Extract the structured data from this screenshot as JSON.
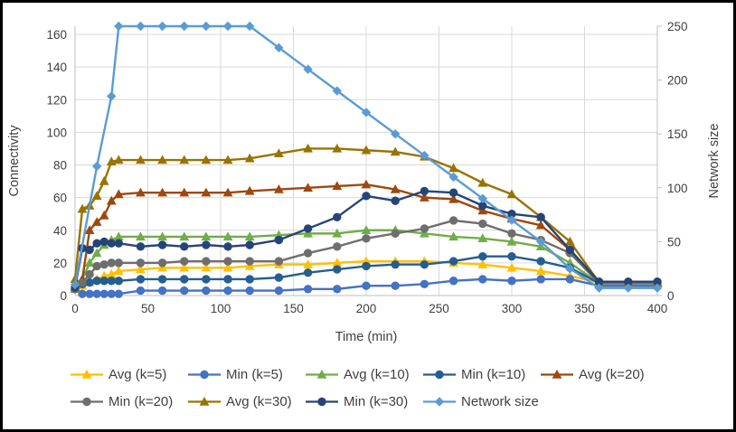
{
  "chart_data": {
    "type": "line",
    "title": "",
    "xlabel": "Time (min)",
    "ylabel_left": "Connectivity",
    "ylabel_right": "Network size",
    "x_range": [
      0,
      400
    ],
    "x_ticks": [
      0,
      50,
      100,
      150,
      200,
      250,
      300,
      350,
      400
    ],
    "y_left_ticks": [
      0,
      20,
      40,
      60,
      80,
      100,
      120,
      140,
      160
    ],
    "y_right_ticks": [
      0,
      50,
      100,
      150,
      200,
      250
    ],
    "grid": true,
    "legend_position": "bottom",
    "colors": {
      "grid": "#d9d9d9",
      "axis": "#bfbfbf",
      "text": "#3f3f3f"
    },
    "series": [
      {
        "name": "Avg (k=5)",
        "color": "#FFC000",
        "marker": "triangle",
        "axis": "left",
        "points": [
          [
            0,
            4
          ],
          [
            5,
            6
          ],
          [
            10,
            8
          ],
          [
            15,
            10
          ],
          [
            20,
            12
          ],
          [
            25,
            13
          ],
          [
            30,
            15
          ],
          [
            45,
            16
          ],
          [
            60,
            17
          ],
          [
            75,
            17
          ],
          [
            90,
            17
          ],
          [
            105,
            17
          ],
          [
            120,
            18
          ],
          [
            140,
            19
          ],
          [
            160,
            19
          ],
          [
            180,
            20
          ],
          [
            200,
            21
          ],
          [
            220,
            21
          ],
          [
            240,
            21
          ],
          [
            260,
            20
          ],
          [
            280,
            19
          ],
          [
            300,
            17
          ],
          [
            320,
            15
          ],
          [
            340,
            12
          ],
          [
            360,
            8
          ],
          [
            380,
            8
          ],
          [
            400,
            8
          ]
        ]
      },
      {
        "name": "Min (k=5)",
        "color": "#4472C4",
        "marker": "circle",
        "axis": "left",
        "points": [
          [
            0,
            4
          ],
          [
            5,
            1
          ],
          [
            10,
            1
          ],
          [
            15,
            1
          ],
          [
            20,
            1
          ],
          [
            25,
            1
          ],
          [
            30,
            1
          ],
          [
            45,
            3
          ],
          [
            60,
            3
          ],
          [
            75,
            3
          ],
          [
            90,
            3
          ],
          [
            105,
            3
          ],
          [
            120,
            3
          ],
          [
            140,
            3
          ],
          [
            160,
            4
          ],
          [
            180,
            4
          ],
          [
            200,
            6
          ],
          [
            220,
            6
          ],
          [
            240,
            7
          ],
          [
            260,
            9
          ],
          [
            280,
            10
          ],
          [
            300,
            9
          ],
          [
            320,
            10
          ],
          [
            340,
            10
          ],
          [
            360,
            6
          ],
          [
            380,
            6
          ],
          [
            400,
            6
          ]
        ]
      },
      {
        "name": "Avg (k=10)",
        "color": "#70AD47",
        "marker": "triangle",
        "axis": "left",
        "points": [
          [
            0,
            4
          ],
          [
            5,
            10
          ],
          [
            10,
            20
          ],
          [
            15,
            26
          ],
          [
            20,
            31
          ],
          [
            25,
            34
          ],
          [
            30,
            36
          ],
          [
            45,
            36
          ],
          [
            60,
            36
          ],
          [
            75,
            36
          ],
          [
            90,
            36
          ],
          [
            105,
            36
          ],
          [
            120,
            36
          ],
          [
            140,
            37
          ],
          [
            160,
            38
          ],
          [
            180,
            38
          ],
          [
            200,
            40
          ],
          [
            220,
            40
          ],
          [
            240,
            38
          ],
          [
            260,
            36
          ],
          [
            280,
            35
          ],
          [
            300,
            33
          ],
          [
            320,
            30
          ],
          [
            340,
            20
          ],
          [
            360,
            7.5
          ],
          [
            380,
            7.5
          ],
          [
            400,
            7.5
          ]
        ]
      },
      {
        "name": "Min (k=10)",
        "color": "#255E91",
        "marker": "circle",
        "axis": "left",
        "points": [
          [
            0,
            4
          ],
          [
            5,
            7
          ],
          [
            10,
            8
          ],
          [
            15,
            9
          ],
          [
            20,
            9
          ],
          [
            25,
            9
          ],
          [
            30,
            9
          ],
          [
            45,
            10
          ],
          [
            60,
            10
          ],
          [
            75,
            10
          ],
          [
            90,
            10
          ],
          [
            105,
            10
          ],
          [
            120,
            10
          ],
          [
            140,
            11
          ],
          [
            160,
            14
          ],
          [
            180,
            16
          ],
          [
            200,
            18
          ],
          [
            220,
            19
          ],
          [
            240,
            19
          ],
          [
            260,
            21
          ],
          [
            280,
            24
          ],
          [
            300,
            24
          ],
          [
            320,
            21
          ],
          [
            340,
            17
          ],
          [
            360,
            7.5
          ],
          [
            380,
            7.5
          ],
          [
            400,
            7.5
          ]
        ]
      },
      {
        "name": "Avg (k=20)",
        "color": "#9E480E",
        "marker": "triangle",
        "axis": "left",
        "points": [
          [
            0,
            5
          ],
          [
            5,
            10
          ],
          [
            10,
            40
          ],
          [
            15,
            45
          ],
          [
            20,
            49
          ],
          [
            25,
            58
          ],
          [
            30,
            62
          ],
          [
            45,
            63
          ],
          [
            60,
            63
          ],
          [
            75,
            63
          ],
          [
            90,
            63
          ],
          [
            105,
            63
          ],
          [
            120,
            64
          ],
          [
            140,
            65
          ],
          [
            160,
            66
          ],
          [
            180,
            67
          ],
          [
            200,
            68
          ],
          [
            220,
            65
          ],
          [
            240,
            60
          ],
          [
            260,
            59
          ],
          [
            280,
            52
          ],
          [
            300,
            47
          ],
          [
            320,
            43
          ],
          [
            340,
            28
          ],
          [
            360,
            8
          ],
          [
            380,
            8
          ],
          [
            400,
            8
          ]
        ]
      },
      {
        "name": "Min (k=20)",
        "color": "#6E6E6E",
        "marker": "circle",
        "axis": "left",
        "points": [
          [
            0,
            4
          ],
          [
            5,
            8
          ],
          [
            10,
            13
          ],
          [
            15,
            18
          ],
          [
            20,
            19
          ],
          [
            25,
            20
          ],
          [
            30,
            20
          ],
          [
            45,
            20
          ],
          [
            60,
            20
          ],
          [
            75,
            21
          ],
          [
            90,
            21
          ],
          [
            105,
            21
          ],
          [
            120,
            21
          ],
          [
            140,
            21
          ],
          [
            160,
            26
          ],
          [
            180,
            30
          ],
          [
            200,
            35
          ],
          [
            220,
            38
          ],
          [
            240,
            41
          ],
          [
            260,
            46
          ],
          [
            280,
            44
          ],
          [
            300,
            38
          ],
          [
            320,
            34
          ],
          [
            340,
            26
          ],
          [
            360,
            7.5
          ],
          [
            380,
            7.5
          ],
          [
            400,
            7.5
          ]
        ]
      },
      {
        "name": "Avg (k=30)",
        "color": "#997300",
        "marker": "triangle",
        "axis": "left",
        "points": [
          [
            0,
            10
          ],
          [
            5,
            53
          ],
          [
            10,
            55
          ],
          [
            15,
            61
          ],
          [
            20,
            70
          ],
          [
            25,
            82
          ],
          [
            30,
            83
          ],
          [
            45,
            83
          ],
          [
            60,
            83
          ],
          [
            75,
            83
          ],
          [
            90,
            83
          ],
          [
            105,
            83
          ],
          [
            120,
            84
          ],
          [
            140,
            87
          ],
          [
            160,
            90
          ],
          [
            180,
            90
          ],
          [
            200,
            89
          ],
          [
            220,
            88
          ],
          [
            240,
            85
          ],
          [
            260,
            78
          ],
          [
            280,
            69
          ],
          [
            300,
            62
          ],
          [
            320,
            48
          ],
          [
            340,
            33
          ],
          [
            360,
            8
          ],
          [
            380,
            8
          ],
          [
            400,
            8
          ]
        ]
      },
      {
        "name": "Min (k=30)",
        "color": "#264478",
        "marker": "circle",
        "axis": "left",
        "points": [
          [
            0,
            5
          ],
          [
            5,
            29
          ],
          [
            10,
            28
          ],
          [
            15,
            32
          ],
          [
            20,
            33
          ],
          [
            25,
            32
          ],
          [
            30,
            32
          ],
          [
            45,
            30
          ],
          [
            60,
            31
          ],
          [
            75,
            30
          ],
          [
            90,
            31
          ],
          [
            105,
            30
          ],
          [
            120,
            31
          ],
          [
            140,
            34
          ],
          [
            160,
            41
          ],
          [
            180,
            48
          ],
          [
            200,
            61
          ],
          [
            220,
            58
          ],
          [
            240,
            64
          ],
          [
            260,
            63
          ],
          [
            280,
            55
          ],
          [
            300,
            50
          ],
          [
            320,
            48
          ],
          [
            340,
            28
          ],
          [
            360,
            8.5
          ],
          [
            380,
            8.5
          ],
          [
            400,
            8.5
          ]
        ]
      },
      {
        "name": "Network size",
        "color": "#5B9BD5",
        "marker": "diamond",
        "axis": "right",
        "points": [
          [
            0,
            10
          ],
          [
            15,
            120
          ],
          [
            25,
            185
          ],
          [
            30,
            250
          ],
          [
            45,
            250
          ],
          [
            60,
            250
          ],
          [
            75,
            250
          ],
          [
            90,
            250
          ],
          [
            105,
            250
          ],
          [
            120,
            250
          ],
          [
            140,
            230
          ],
          [
            160,
            210
          ],
          [
            180,
            190
          ],
          [
            200,
            170
          ],
          [
            220,
            150
          ],
          [
            240,
            130
          ],
          [
            260,
            110
          ],
          [
            280,
            90
          ],
          [
            300,
            70
          ],
          [
            320,
            50
          ],
          [
            340,
            25
          ],
          [
            360,
            7
          ],
          [
            380,
            7
          ],
          [
            400,
            7
          ]
        ]
      }
    ]
  }
}
